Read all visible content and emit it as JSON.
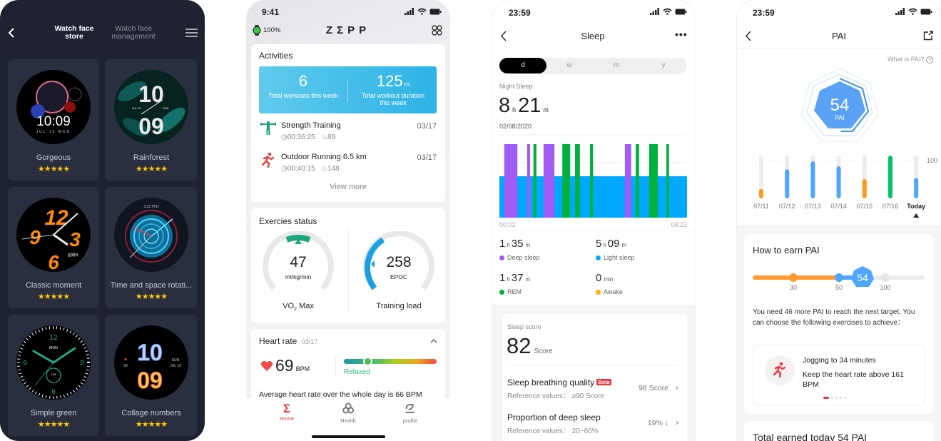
{
  "watch_store": {
    "tabs": [
      {
        "label": "Watch face store",
        "active": true
      },
      {
        "label": "Watch face management",
        "active": false
      }
    ],
    "faces": [
      {
        "name": "Gorgeous",
        "rating": 5,
        "art": [
          "10:09",
          "JUL 15 WED"
        ]
      },
      {
        "name": "Rainforest",
        "rating": 5,
        "art": [
          "10",
          "09",
          "JUL 19",
          "SUN"
        ]
      },
      {
        "name": "Classic moment",
        "rating": 5,
        "art": [
          "12",
          "9",
          "3",
          "6",
          "星期日"
        ]
      },
      {
        "name": "Time and space rotati...",
        "rating": 5,
        "art": [
          "3.23 THU"
        ]
      },
      {
        "name": "Simple green",
        "rating": 5,
        "art": [
          "12",
          "9",
          "3",
          "6",
          "MON",
          "158"
        ]
      },
      {
        "name": "Collage numbers",
        "rating": 5,
        "art": [
          "10",
          "09",
          "SUN",
          "JUL 19",
          "90"
        ]
      }
    ],
    "star_glyphs": "★★★★★",
    "colors": {
      "bg": "#1f2331",
      "card": "#2a2f40",
      "star": "#ffc800"
    }
  },
  "zepp_home": {
    "status_time": "9:41",
    "battery": "100%",
    "brand": "ZΣPP",
    "activities": {
      "title": "Activities",
      "workouts_count": "6",
      "workouts_label": "Total workouts this week",
      "duration_value": "125",
      "duration_unit": "m",
      "duration_label": "Total workout duration this week",
      "items": [
        {
          "title": "Strength Training",
          "date": "03/17",
          "duration": "00:36:25",
          "calories": "89",
          "icon": "strength-training-icon"
        },
        {
          "title": "Outdoor Running 6.5 km",
          "date": "03/17",
          "duration": "00:40:15",
          "calories": "148",
          "icon": "running-icon"
        }
      ],
      "view_more": "View more"
    },
    "exercise_status": {
      "title": "Exercies status",
      "vo2": {
        "value": "47",
        "unit": "ml/kg/min",
        "label_main": "VO",
        "label_sub": "2",
        "label_tail": " Max"
      },
      "training_load": {
        "value": "258",
        "unit": "EPOC",
        "label": "Training load"
      }
    },
    "heart_rate": {
      "title": "Heart rate",
      "date": "03/17",
      "value": "69",
      "unit": "BPM",
      "zone": "Relaxed",
      "zone_level": 0.25,
      "summary": "Average heart rate over the whole day is 66 BPM"
    },
    "nav": [
      {
        "label": "Home",
        "active": true
      },
      {
        "label": "Health"
      },
      {
        "label": "profile"
      }
    ],
    "colors": {
      "accent": "#f0343a",
      "banner": "#3dbde8"
    }
  },
  "sleep": {
    "status_time": "23:59",
    "title": "Sleep",
    "periods": [
      {
        "label": "d",
        "active": true
      },
      {
        "label": "w"
      },
      {
        "label": "m"
      },
      {
        "label": "y"
      }
    ],
    "night_label": "Night Sleep",
    "total_h": "8",
    "total_m": "21",
    "h": "h",
    "m": "m",
    "date": "02/08/2020",
    "chart_start": "00:02",
    "chart_end": "08:23",
    "segments": [
      {
        "stage": "deep",
        "start": "00:15",
        "end": "00:50"
      },
      {
        "stage": "deep",
        "start": "01:16",
        "end": "01:24"
      },
      {
        "stage": "rem",
        "start": "01:33",
        "end": "01:41"
      },
      {
        "stage": "deep",
        "start": "02:00",
        "end": "02:29"
      },
      {
        "stage": "rem",
        "start": "02:50",
        "end": "03:11"
      },
      {
        "stage": "rem",
        "start": "03:24",
        "end": "03:37"
      },
      {
        "stage": "rem",
        "start": "04:04",
        "end": "04:12"
      },
      {
        "stage": "deep",
        "start": "05:37",
        "end": "05:54"
      },
      {
        "stage": "rem",
        "start": "06:06",
        "end": "06:15"
      },
      {
        "stage": "rem",
        "start": "06:42",
        "end": "07:05"
      },
      {
        "stage": "rem",
        "start": "07:28",
        "end": "07:35"
      }
    ],
    "stats": [
      {
        "h": "1",
        "m": "35",
        "label": "Deep sleep",
        "color": "#a05cf5"
      },
      {
        "h": "5",
        "m": "09",
        "label": "Light sleep",
        "color": "#00a8ff"
      },
      {
        "h": "1",
        "m": "37",
        "label": "REM",
        "color": "#00b140"
      },
      {
        "value": "0",
        "unit": "min",
        "label": "Awake",
        "color": "#ffb000"
      }
    ],
    "score": {
      "label": "Sleep score",
      "value": "82",
      "unit": "Score"
    },
    "rows": [
      {
        "title": "Sleep breathing quality",
        "badge": "Beta",
        "ref": "Reference values： ≥90 Score",
        "value": "98 Score",
        "trend": ""
      },
      {
        "title": "Proportion of deep sleep",
        "badge": "",
        "ref": "Reference values： 20~60%",
        "value": "19%",
        "trend": "↓"
      }
    ]
  },
  "pai": {
    "status_time": "23:59",
    "title": "PAI",
    "what_is": "What is PAI?",
    "value": "54",
    "unit": "PAI",
    "chart_data": {
      "type": "bar",
      "categories": [
        "07/11",
        "07/12",
        "07/13",
        "07/14",
        "07/15",
        "07/16",
        "Today"
      ],
      "values": [
        25,
        77,
        98,
        85,
        51,
        113,
        54
      ],
      "colors": [
        "#ff9a1f",
        "#4ea6ff",
        "#4ea6ff",
        "#4ea6ff",
        "#ff9a1f",
        "#00c36b",
        "#4ea6ff"
      ],
      "reference_line": 100,
      "reference_label": "100",
      "selected": "Today"
    },
    "earn": {
      "title": "How to earn PAI",
      "milestones": [
        "30",
        "50",
        "100"
      ],
      "current": "54",
      "text": "You need 46 more PAI to reach the next target. You can choose the following exercises to achieve：",
      "suggestion_title": "Jogging to 34 minutes",
      "suggestion_detail": "Keep the heart rate above 161 BPM",
      "pages": 5,
      "page": 1
    },
    "total_title": "Total earned today 54 PAI"
  }
}
